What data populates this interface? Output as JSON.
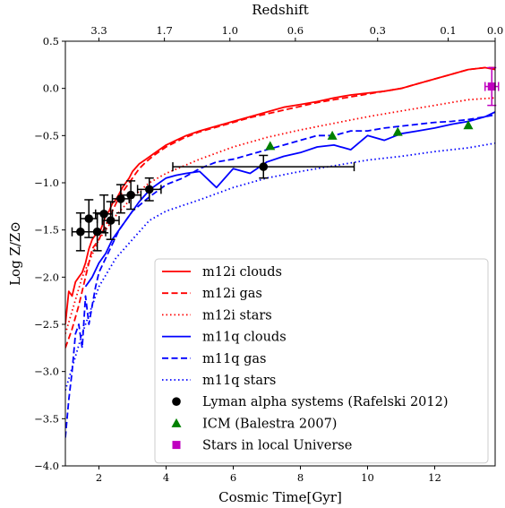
{
  "chart_data": {
    "type": "line",
    "title": "",
    "xlabel": "Cosmic Time[Gyr]",
    "ylabel": "Log Z/Z⊙",
    "top_axis_label": "Redshift",
    "xlim": [
      1.0,
      13.8
    ],
    "ylim": [
      -4.0,
      0.5
    ],
    "x_ticks": [
      2,
      4,
      6,
      8,
      10,
      12
    ],
    "x_tick_labels": [
      "2",
      "4",
      "6",
      "8",
      "10",
      "12"
    ],
    "y_ticks": [
      -4.0,
      -3.5,
      -3.0,
      -2.5,
      -2.0,
      -1.5,
      -1.0,
      -0.5,
      0.0,
      0.5
    ],
    "y_tick_labels": [
      "−4.0",
      "−3.5",
      "−3.0",
      "−2.5",
      "−2.0",
      "−1.5",
      "−1.0",
      "−0.5",
      "0.0",
      "0.5"
    ],
    "top_ticks": [
      {
        "z_label": "3.3",
        "time": 2.0
      },
      {
        "z_label": "1.7",
        "time": 3.95
      },
      {
        "z_label": "1.0",
        "time": 5.9
      },
      {
        "z_label": "0.6",
        "time": 7.85
      },
      {
        "z_label": "0.3",
        "time": 10.3
      },
      {
        "z_label": "0.1",
        "time": 12.4
      },
      {
        "z_label": "0.0",
        "time": 13.8
      }
    ],
    "grid": false,
    "legend_position": "lower-right",
    "series": [
      {
        "name": "m12i clouds",
        "color": "#ff0000",
        "style": "solid",
        "x": [
          1.0,
          1.1,
          1.2,
          1.3,
          1.4,
          1.5,
          1.6,
          1.7,
          1.8,
          1.9,
          2.0,
          2.1,
          2.2,
          2.3,
          2.4,
          2.5,
          2.6,
          2.7,
          2.8,
          2.9,
          3.0,
          3.2,
          3.4,
          3.6,
          3.8,
          4.0,
          4.3,
          4.6,
          5.0,
          5.5,
          6.0,
          6.5,
          7.0,
          7.5,
          8.0,
          8.5,
          9.0,
          9.5,
          10.0,
          10.5,
          11.0,
          11.5,
          12.0,
          12.5,
          13.0,
          13.5,
          13.8
        ],
        "y": [
          -2.5,
          -2.15,
          -2.2,
          -2.05,
          -2.0,
          -1.95,
          -1.85,
          -1.7,
          -1.6,
          -1.55,
          -1.55,
          -1.45,
          -1.35,
          -1.3,
          -1.22,
          -1.18,
          -1.12,
          -1.05,
          -1.0,
          -0.95,
          -0.88,
          -0.8,
          -0.75,
          -0.7,
          -0.65,
          -0.6,
          -0.55,
          -0.5,
          -0.45,
          -0.4,
          -0.35,
          -0.3,
          -0.25,
          -0.2,
          -0.17,
          -0.14,
          -0.1,
          -0.07,
          -0.05,
          -0.03,
          0.0,
          0.05,
          0.1,
          0.15,
          0.2,
          0.22,
          0.2
        ]
      },
      {
        "name": "m12i gas",
        "color": "#ff0000",
        "style": "dashed",
        "x": [
          1.0,
          1.2,
          1.4,
          1.6,
          1.8,
          2.0,
          2.2,
          2.4,
          2.6,
          2.8,
          3.0,
          3.2,
          3.4,
          3.6,
          3.8,
          4.0,
          4.5,
          5.0,
          5.5,
          6.0,
          6.5,
          7.0,
          7.5,
          8.0,
          8.5,
          9.0,
          9.5,
          10.0,
          10.5,
          11.0,
          11.5,
          12.0,
          12.5,
          13.0,
          13.5,
          13.8
        ],
        "y": [
          -2.75,
          -2.55,
          -2.3,
          -2.0,
          -1.7,
          -1.6,
          -1.45,
          -1.3,
          -1.15,
          -1.05,
          -0.95,
          -0.85,
          -0.78,
          -0.72,
          -0.67,
          -0.62,
          -0.53,
          -0.46,
          -0.41,
          -0.36,
          -0.31,
          -0.27,
          -0.23,
          -0.19,
          -0.15,
          -0.12,
          -0.09,
          -0.06,
          -0.03,
          0.0,
          0.05,
          0.1,
          0.15,
          0.2,
          0.22,
          0.22
        ]
      },
      {
        "name": "m12i stars",
        "color": "#ff0000",
        "style": "dotted",
        "x": [
          1.0,
          1.5,
          2.0,
          2.5,
          3.0,
          3.5,
          4.0,
          5.0,
          6.0,
          7.0,
          8.0,
          9.0,
          10.0,
          11.0,
          12.0,
          13.0,
          13.8
        ],
        "y": [
          -2.6,
          -2.0,
          -1.6,
          -1.35,
          -1.15,
          -1.0,
          -0.9,
          -0.75,
          -0.62,
          -0.52,
          -0.44,
          -0.37,
          -0.3,
          -0.24,
          -0.18,
          -0.12,
          -0.1
        ]
      },
      {
        "name": "m11q clouds",
        "color": "#0000ff",
        "style": "solid",
        "x": [
          1.6,
          1.8,
          2.0,
          2.2,
          2.4,
          2.6,
          2.8,
          3.0,
          3.2,
          3.4,
          3.6,
          3.8,
          4.0,
          4.3,
          4.6,
          5.0,
          5.5,
          6.0,
          6.5,
          7.0,
          7.5,
          8.0,
          8.5,
          9.0,
          9.5,
          10.0,
          10.5,
          11.0,
          11.5,
          12.0,
          12.5,
          13.0,
          13.5,
          13.8
        ],
        "y": [
          -2.1,
          -2.0,
          -1.85,
          -1.75,
          -1.6,
          -1.5,
          -1.4,
          -1.3,
          -1.2,
          -1.12,
          -1.05,
          -1.0,
          -0.95,
          -0.92,
          -0.9,
          -0.88,
          -1.05,
          -0.85,
          -0.9,
          -0.78,
          -0.72,
          -0.68,
          -0.62,
          -0.6,
          -0.65,
          -0.5,
          -0.55,
          -0.48,
          -0.45,
          -0.42,
          -0.38,
          -0.35,
          -0.3,
          -0.25
        ]
      },
      {
        "name": "m11q gas",
        "color": "#0000ff",
        "style": "dashed",
        "x": [
          1.0,
          1.1,
          1.2,
          1.3,
          1.4,
          1.5,
          1.6,
          1.7,
          1.8,
          1.9,
          2.0,
          2.2,
          2.4,
          2.6,
          2.8,
          3.0,
          3.5,
          4.0,
          4.5,
          5.0,
          5.5,
          6.0,
          6.5,
          7.0,
          7.5,
          8.0,
          8.5,
          9.0,
          9.5,
          10.0,
          10.5,
          11.0,
          11.5,
          12.0,
          12.5,
          13.0,
          13.5,
          13.8
        ],
        "y": [
          -3.7,
          -3.3,
          -3.0,
          -2.6,
          -2.5,
          -2.75,
          -2.2,
          -2.5,
          -2.3,
          -2.1,
          -1.95,
          -1.8,
          -1.65,
          -1.5,
          -1.4,
          -1.3,
          -1.15,
          -1.02,
          -0.95,
          -0.85,
          -0.78,
          -0.75,
          -0.7,
          -0.65,
          -0.6,
          -0.55,
          -0.5,
          -0.5,
          -0.45,
          -0.45,
          -0.42,
          -0.4,
          -0.38,
          -0.36,
          -0.35,
          -0.33,
          -0.3,
          -0.28
        ]
      },
      {
        "name": "m11q stars",
        "color": "#0000ff",
        "style": "dotted",
        "x": [
          1.0,
          1.5,
          2.0,
          2.5,
          3.0,
          3.5,
          4.0,
          5.0,
          6.0,
          7.0,
          8.0,
          9.0,
          10.0,
          11.0,
          12.0,
          13.0,
          13.8
        ],
        "y": [
          -3.2,
          -2.6,
          -2.1,
          -1.8,
          -1.6,
          -1.4,
          -1.3,
          -1.18,
          -1.05,
          -0.95,
          -0.88,
          -0.82,
          -0.76,
          -0.72,
          -0.67,
          -0.63,
          -0.58
        ]
      }
    ],
    "observations": [
      {
        "name": "Lyman alpha systems (Rafelski 2012)",
        "color": "#000000",
        "marker": "circle",
        "points": [
          {
            "x": 1.45,
            "y": -1.52,
            "xerr": 0.25,
            "yerr": 0.2
          },
          {
            "x": 1.7,
            "y": -1.38,
            "xerr": 0.25,
            "yerr": 0.2
          },
          {
            "x": 1.95,
            "y": -1.52,
            "xerr": 0.25,
            "yerr": 0.2
          },
          {
            "x": 2.15,
            "y": -1.33,
            "xerr": 0.25,
            "yerr": 0.2
          },
          {
            "x": 2.35,
            "y": -1.4,
            "xerr": 0.25,
            "yerr": 0.2
          },
          {
            "x": 2.65,
            "y": -1.17,
            "xerr": 0.25,
            "yerr": 0.15
          },
          {
            "x": 2.95,
            "y": -1.13,
            "xerr": 0.3,
            "yerr": 0.15
          },
          {
            "x": 3.5,
            "y": -1.07,
            "xerr": 0.35,
            "yerr": 0.12
          },
          {
            "x": 6.9,
            "y": -0.83,
            "xerr": 2.7,
            "yerr": 0.12
          }
        ]
      },
      {
        "name": "ICM (Balestra 2007)",
        "color": "#008000",
        "marker": "triangle",
        "points": [
          {
            "x": 7.1,
            "y": -0.61
          },
          {
            "x": 8.95,
            "y": -0.5
          },
          {
            "x": 10.9,
            "y": -0.46
          },
          {
            "x": 13.0,
            "y": -0.39
          }
        ]
      },
      {
        "name": "Stars in local Universe",
        "color": "#bf00bf",
        "marker": "square",
        "points": [
          {
            "x": 13.7,
            "y": 0.02,
            "xerr": 0.2,
            "yerr": 0.2
          }
        ]
      }
    ]
  }
}
